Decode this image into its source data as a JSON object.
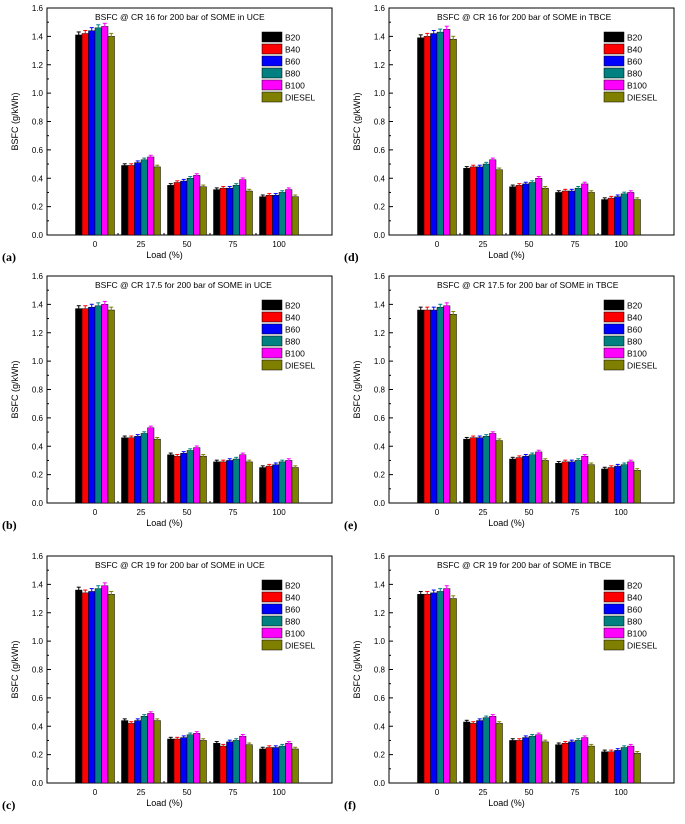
{
  "legend_colors": {
    "B20": "#000000",
    "B40": "#ff0000",
    "B60": "#0000ff",
    "B80": "#008080",
    "B100": "#ff00ff",
    "DIESEL": "#808000"
  },
  "chart_data": [
    {
      "type": "bar",
      "panel_label": "(a)",
      "title": "BSFC @ CR 16  for 200 bar of SOME in UCE",
      "xlabel": "Load (%)",
      "ylabel": "BSFC (g/kWh)",
      "categories": [
        "0",
        "25",
        "50",
        "75",
        "100"
      ],
      "ylim": [
        0,
        1.6
      ],
      "yticks": [
        "0.0",
        "0.2",
        "0.4",
        "0.6",
        "0.8",
        "1.0",
        "1.2",
        "1.4",
        "1.6"
      ],
      "series": [
        {
          "name": "B20",
          "values": [
            1.41,
            0.49,
            0.35,
            0.32,
            0.27
          ]
        },
        {
          "name": "B40",
          "values": [
            1.42,
            0.49,
            0.37,
            0.33,
            0.28
          ]
        },
        {
          "name": "B60",
          "values": [
            1.44,
            0.51,
            0.38,
            0.33,
            0.28
          ]
        },
        {
          "name": "B80",
          "values": [
            1.46,
            0.53,
            0.4,
            0.35,
            0.3
          ]
        },
        {
          "name": "B100",
          "values": [
            1.47,
            0.55,
            0.42,
            0.39,
            0.32
          ]
        },
        {
          "name": "DIESEL",
          "values": [
            1.4,
            0.48,
            0.34,
            0.31,
            0.27
          ]
        }
      ]
    },
    {
      "type": "bar",
      "panel_label": "(d)",
      "title": "BSFC @ CR 16  for 200 bar of SOME in TBCE",
      "xlabel": "Load (%)",
      "ylabel": "BSFC (g/kWh)",
      "categories": [
        "0",
        "25",
        "50",
        "75",
        "100"
      ],
      "ylim": [
        0,
        1.6
      ],
      "yticks": [
        "0.0",
        "0.2",
        "0.4",
        "0.6",
        "0.8",
        "1.0",
        "1.2",
        "1.4",
        "1.6"
      ],
      "series": [
        {
          "name": "B20",
          "values": [
            1.39,
            0.47,
            0.34,
            0.3,
            0.25
          ]
        },
        {
          "name": "B40",
          "values": [
            1.4,
            0.48,
            0.35,
            0.31,
            0.26
          ]
        },
        {
          "name": "B60",
          "values": [
            1.42,
            0.48,
            0.36,
            0.31,
            0.27
          ]
        },
        {
          "name": "B80",
          "values": [
            1.43,
            0.5,
            0.37,
            0.33,
            0.29
          ]
        },
        {
          "name": "B100",
          "values": [
            1.45,
            0.53,
            0.4,
            0.36,
            0.3
          ]
        },
        {
          "name": "DIESEL",
          "values": [
            1.38,
            0.46,
            0.33,
            0.3,
            0.25
          ]
        }
      ]
    },
    {
      "type": "bar",
      "panel_label": "(b)",
      "title": "BSFC @ CR 17.5  for 200 bar of SOME in UCE",
      "xlabel": "Load (%)",
      "ylabel": "BSFC (g/kWh)",
      "categories": [
        "0",
        "25",
        "50",
        "75",
        "100"
      ],
      "ylim": [
        0,
        1.6
      ],
      "yticks": [
        "0.0",
        "0.2",
        "0.4",
        "0.6",
        "0.8",
        "1.0",
        "1.2",
        "1.4",
        "1.6"
      ],
      "series": [
        {
          "name": "B20",
          "values": [
            1.37,
            0.46,
            0.34,
            0.29,
            0.25
          ]
        },
        {
          "name": "B40",
          "values": [
            1.37,
            0.46,
            0.33,
            0.29,
            0.26
          ]
        },
        {
          "name": "B60",
          "values": [
            1.38,
            0.47,
            0.35,
            0.3,
            0.27
          ]
        },
        {
          "name": "B80",
          "values": [
            1.39,
            0.49,
            0.37,
            0.31,
            0.29
          ]
        },
        {
          "name": "B100",
          "values": [
            1.4,
            0.53,
            0.39,
            0.34,
            0.3
          ]
        },
        {
          "name": "DIESEL",
          "values": [
            1.36,
            0.45,
            0.33,
            0.29,
            0.25
          ]
        }
      ]
    },
    {
      "type": "bar",
      "panel_label": "(e)",
      "title": "BSFC @ CR 17.5  for 200 bar of SOME in TBCE",
      "xlabel": "Load (%)",
      "ylabel": "BSFC (g/kWh)",
      "categories": [
        "0",
        "25",
        "50",
        "75",
        "100"
      ],
      "ylim": [
        0,
        1.6
      ],
      "yticks": [
        "0.0",
        "0.2",
        "0.4",
        "0.6",
        "0.8",
        "1.0",
        "1.2",
        "1.4",
        "1.6"
      ],
      "series": [
        {
          "name": "B20",
          "values": [
            1.36,
            0.45,
            0.31,
            0.28,
            0.24
          ]
        },
        {
          "name": "B40",
          "values": [
            1.36,
            0.46,
            0.32,
            0.29,
            0.25
          ]
        },
        {
          "name": "B60",
          "values": [
            1.36,
            0.46,
            0.33,
            0.29,
            0.26
          ]
        },
        {
          "name": "B80",
          "values": [
            1.38,
            0.47,
            0.34,
            0.3,
            0.27
          ]
        },
        {
          "name": "B100",
          "values": [
            1.39,
            0.49,
            0.36,
            0.33,
            0.29
          ]
        },
        {
          "name": "DIESEL",
          "values": [
            1.33,
            0.44,
            0.3,
            0.27,
            0.23
          ]
        }
      ]
    },
    {
      "type": "bar",
      "panel_label": "(c)",
      "title": "BSFC @ CR 19  for 200 bar of SOME in UCE",
      "xlabel": "Load (%)",
      "ylabel": "BSFC (g/kWh)",
      "categories": [
        "0",
        "25",
        "50",
        "75",
        "100"
      ],
      "ylim": [
        0,
        1.6
      ],
      "yticks": [
        "0.0",
        "0.2",
        "0.4",
        "0.6",
        "0.8",
        "1.0",
        "1.2",
        "1.4",
        "1.6"
      ],
      "series": [
        {
          "name": "B20",
          "values": [
            1.36,
            0.44,
            0.31,
            0.28,
            0.24
          ]
        },
        {
          "name": "B40",
          "values": [
            1.34,
            0.42,
            0.31,
            0.26,
            0.25
          ]
        },
        {
          "name": "B60",
          "values": [
            1.35,
            0.44,
            0.32,
            0.29,
            0.25
          ]
        },
        {
          "name": "B80",
          "values": [
            1.37,
            0.47,
            0.34,
            0.3,
            0.26
          ]
        },
        {
          "name": "B100",
          "values": [
            1.39,
            0.49,
            0.35,
            0.33,
            0.28
          ]
        },
        {
          "name": "DIESEL",
          "values": [
            1.33,
            0.44,
            0.3,
            0.27,
            0.24
          ]
        }
      ]
    },
    {
      "type": "bar",
      "panel_label": "(f)",
      "title": "BSFC @ CR 19  for 200 bar of SOME in TBCE",
      "xlabel": "Load (%)",
      "ylabel": "BSFC (g/kWh)",
      "categories": [
        "0",
        "25",
        "50",
        "75",
        "100"
      ],
      "ylim": [
        0,
        1.6
      ],
      "yticks": [
        "0.0",
        "0.2",
        "0.4",
        "0.6",
        "0.8",
        "1.0",
        "1.2",
        "1.4",
        "1.6"
      ],
      "series": [
        {
          "name": "B20",
          "values": [
            1.33,
            0.43,
            0.3,
            0.27,
            0.22
          ]
        },
        {
          "name": "B40",
          "values": [
            1.33,
            0.42,
            0.3,
            0.28,
            0.22
          ]
        },
        {
          "name": "B60",
          "values": [
            1.34,
            0.44,
            0.32,
            0.29,
            0.23
          ]
        },
        {
          "name": "B80",
          "values": [
            1.35,
            0.46,
            0.33,
            0.3,
            0.25
          ]
        },
        {
          "name": "B100",
          "values": [
            1.37,
            0.47,
            0.34,
            0.32,
            0.26
          ]
        },
        {
          "name": "DIESEL",
          "values": [
            1.3,
            0.42,
            0.29,
            0.26,
            0.21
          ]
        }
      ]
    }
  ]
}
